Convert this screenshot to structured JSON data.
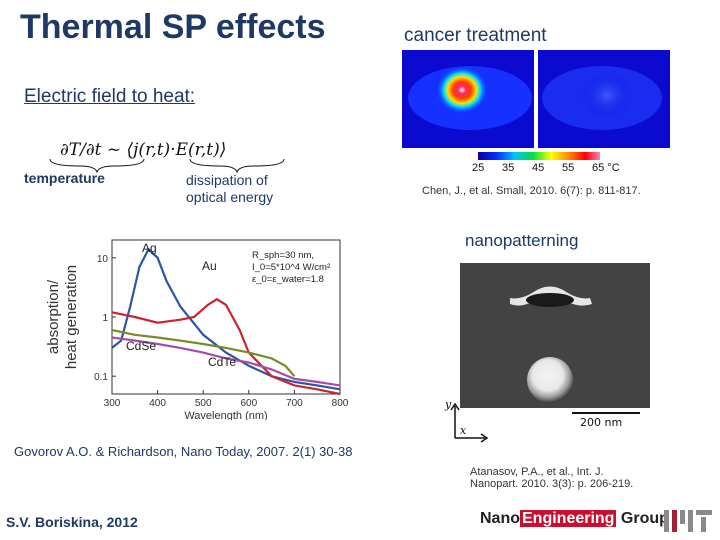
{
  "slide": {
    "title": "Thermal SP effects",
    "subtitle": "Electric field to heat:",
    "formula": "∂T/∂t ~ ⟨j(r,t)·E(r,t)⟩",
    "label_temperature": "temperature",
    "label_dissipation_l1": "dissipation of",
    "label_dissipation_l2": "optical energy",
    "cancer_title": "cancer treatment",
    "scale_ticks": [
      "25",
      "35",
      "45",
      "55",
      "65 °C"
    ],
    "citation_chen": "Chen, J., et al. Small, 2010. 6(7): p. 811-817.",
    "nano_title": "nanopatterning",
    "sem_scale": "200 nm",
    "sem_axis_y": "y",
    "sem_axis_x": "x",
    "citation_govorov": "Govorov A.O. & Richardson, Nano Today, 2007. 2(1) 30-38",
    "citation_atanasov_l1": "Atanasov, P.A., et al., Int. J.",
    "citation_atanasov_l2": "Nanopart. 2010. 3(3): p. 206-219.",
    "author": "S.V. Boriskina, 2012",
    "group_logo_a": "Nano",
    "group_logo_b": "Engineering",
    "group_logo_c": " Group"
  },
  "chart_data": {
    "type": "line",
    "xlabel": "Wavelength (nm)",
    "ylabel_l1": "absorption/",
    "ylabel_l2": "heat generation",
    "yscale": "log",
    "xlim": [
      300,
      800
    ],
    "ylim": [
      0.05,
      20
    ],
    "x_ticks": [
      300,
      400,
      500,
      600,
      700,
      800
    ],
    "y_ticks": [
      {
        "value": 10,
        "label": "10"
      },
      {
        "value": 1,
        "label": "1"
      },
      {
        "value": 0.1,
        "label": "0.1"
      }
    ],
    "params": [
      "R_sph=30 nm,",
      "I_0=5*10^4 W/cm²",
      "ε_0=ε_water=1.8"
    ],
    "series": [
      {
        "name": "Ag",
        "color": "#2b55a8",
        "x": [
          300,
          320,
          340,
          360,
          380,
          400,
          420,
          450,
          500,
          550,
          600,
          650,
          700,
          750,
          800
        ],
        "y": [
          0.3,
          0.4,
          1.5,
          7,
          14,
          10,
          4,
          1.5,
          0.5,
          0.25,
          0.15,
          0.1,
          0.08,
          0.07,
          0.06
        ]
      },
      {
        "name": "Au",
        "color": "#c8262e",
        "x": [
          300,
          350,
          400,
          450,
          480,
          510,
          530,
          550,
          580,
          600,
          650,
          700,
          750,
          800
        ],
        "y": [
          1.2,
          1.0,
          0.8,
          0.9,
          1.0,
          1.6,
          2.0,
          1.6,
          0.6,
          0.25,
          0.1,
          0.07,
          0.06,
          0.05
        ]
      },
      {
        "name": "CdSe",
        "color": "#7a8a2a",
        "x": [
          300,
          350,
          400,
          450,
          500,
          550,
          600,
          650,
          680,
          700
        ],
        "y": [
          0.6,
          0.5,
          0.45,
          0.4,
          0.35,
          0.3,
          0.25,
          0.2,
          0.15,
          0.1
        ]
      },
      {
        "name": "CdTe",
        "color": "#a64ca6",
        "x": [
          300,
          350,
          400,
          450,
          500,
          550,
          600,
          650,
          700,
          750,
          800
        ],
        "y": [
          0.45,
          0.4,
          0.35,
          0.3,
          0.25,
          0.2,
          0.17,
          0.13,
          0.09,
          0.08,
          0.07
        ]
      }
    ]
  }
}
